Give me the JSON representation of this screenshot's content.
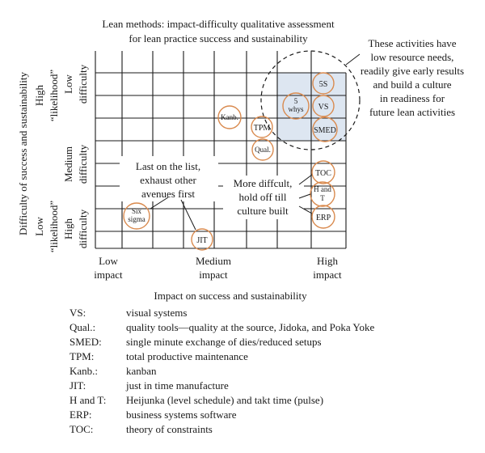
{
  "title": {
    "line1": "Lean methods: impact-difficulty qualitative assessment",
    "line2": "for lean practice success and sustainability"
  },
  "y_axis_label": "Difficulty of success and sustainability",
  "y_levels": {
    "high_likelihood": {
      "line1": "High",
      "line2": "“likelihood”"
    },
    "low_difficulty": {
      "line1": "Low",
      "line2": "difficulty"
    },
    "medium_difficulty": {
      "line1": "Medium",
      "line2": "difficulty"
    },
    "low_likelihood": {
      "line1": "Low",
      "line2": "“likelihood”"
    },
    "high_difficulty": {
      "line1": "High",
      "line2": "difficulty"
    }
  },
  "x_levels": {
    "low": {
      "line1": "Low",
      "line2": "impact"
    },
    "medium": {
      "line1": "Medium",
      "line2": "impact"
    },
    "high": {
      "line1": "High",
      "line2": "impact"
    }
  },
  "x_axis_label": "Impact on success and sustainability",
  "items": {
    "5s": "5S",
    "five_whys_1": "5",
    "five_whys_2": "whys",
    "vs": "VS",
    "smed": "SMED",
    "kanb": "Kanb.",
    "tpm": "TPM",
    "qual": "Qual.",
    "toc": "TOC",
    "ht_1": "H and",
    "ht_2": "T",
    "erp": "ERP",
    "six_sigma_1": "Six",
    "six_sigma_2": "sigma",
    "jit": "JIT"
  },
  "annotations": {
    "early": [
      "These activities have",
      "low resource needs,",
      "readily give early results",
      "and build a culture",
      "in readiness for",
      "future lean activities"
    ],
    "last": [
      "Last on the list,",
      "exhaust other",
      "avenues first"
    ],
    "difficult": [
      "More diffcult,",
      "hold off till",
      "culture built"
    ]
  },
  "legend": [
    {
      "abbr": "VS:",
      "desc": "visual systems"
    },
    {
      "abbr": "Qual.:",
      "desc": "quality tools—quality at the source, Jidoka, and Poka Yoke"
    },
    {
      "abbr": "SMED:",
      "desc": "single minute exchange of dies/reduced setups"
    },
    {
      "abbr": "TPM:",
      "desc": "total productive maintenance"
    },
    {
      "abbr": "Kanb.:",
      "desc": "kanban"
    },
    {
      "abbr": "JIT:",
      "desc": "just in time manufacture"
    },
    {
      "abbr": "H and T:",
      "desc": "Heijunka (level schedule) and takt time (pulse)"
    },
    {
      "abbr": "ERP:",
      "desc": "business systems software"
    },
    {
      "abbr": "TOC:",
      "desc": "theory of constraints"
    }
  ],
  "colors": {
    "circle_stroke": "#d98a4e",
    "highlight_fill": "#dde6f1",
    "grid": "#1a1a1a",
    "text": "#1a1a1a"
  }
}
